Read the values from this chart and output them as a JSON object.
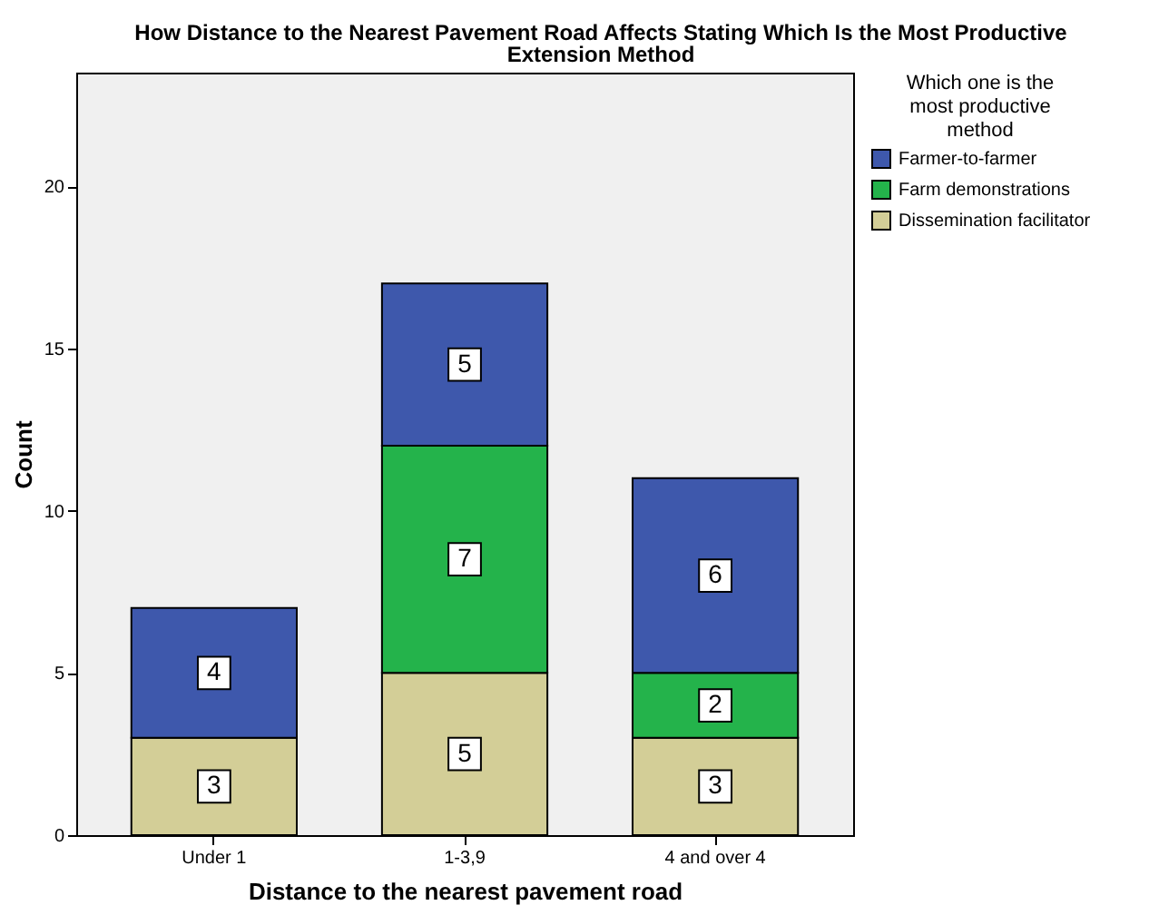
{
  "chart_data": {
    "type": "bar",
    "stacked": true,
    "title": "How Distance to the Nearest Pavement Road Affects Stating Which Is the Most Productive Extension Method",
    "xlabel": "Distance to the nearest pavement road",
    "ylabel": "Count",
    "legend_title": "Which one is the most productive method",
    "legend": "top right",
    "data_labels": true,
    "categories": [
      "Under 1",
      "1-3,9",
      "4 and over 4"
    ],
    "series": [
      {
        "name": "Dissemination facilitator",
        "color": "#d3ce97",
        "values": [
          3,
          5,
          3
        ]
      },
      {
        "name": "Farm demonstrations",
        "color": "#24b34b",
        "values": [
          null,
          7,
          2
        ]
      },
      {
        "name": "Farmer-to-farmer",
        "color": "#3e58ac",
        "values": [
          4,
          5,
          6
        ]
      }
    ],
    "ylim": [
      0,
      23.5
    ],
    "yticks": [
      0,
      5,
      10,
      15,
      20
    ]
  }
}
